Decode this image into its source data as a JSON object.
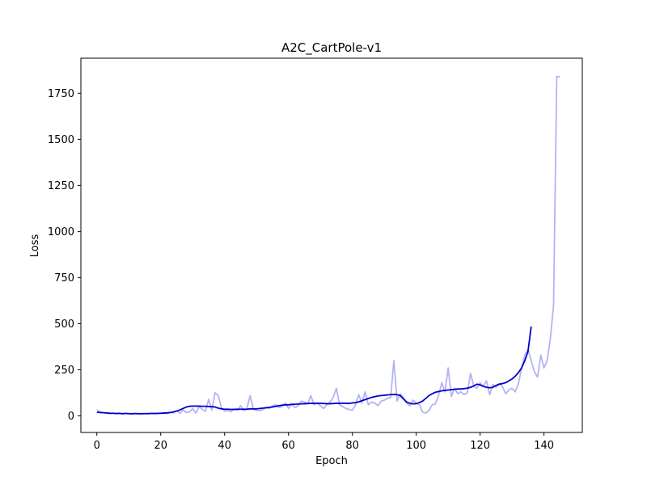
{
  "chart_data": {
    "type": "line",
    "title": "A2C_CartPole-v1",
    "xlabel": "Epoch",
    "ylabel": "Loss",
    "xlim": [
      -5,
      152
    ],
    "ylim": [
      -90,
      1940
    ],
    "xticks": [
      0,
      20,
      40,
      60,
      80,
      100,
      120,
      140
    ],
    "yticks": [
      0,
      250,
      500,
      750,
      1000,
      1250,
      1500,
      1750
    ],
    "grid": false,
    "legend": "none",
    "series": [
      {
        "role": "raw",
        "color": "#b3b3f5",
        "x": [
          0,
          1,
          2,
          3,
          4,
          5,
          6,
          7,
          8,
          9,
          10,
          11,
          12,
          13,
          14,
          15,
          16,
          17,
          18,
          19,
          20,
          21,
          22,
          23,
          24,
          25,
          26,
          27,
          28,
          29,
          30,
          31,
          32,
          33,
          34,
          35,
          36,
          37,
          38,
          39,
          40,
          41,
          42,
          43,
          44,
          45,
          46,
          47,
          48,
          49,
          50,
          51,
          52,
          53,
          54,
          55,
          56,
          57,
          58,
          59,
          60,
          61,
          62,
          63,
          64,
          65,
          66,
          67,
          68,
          69,
          70,
          71,
          72,
          73,
          74,
          75,
          76,
          77,
          78,
          79,
          80,
          81,
          82,
          83,
          84,
          85,
          86,
          87,
          88,
          89,
          90,
          91,
          92,
          93,
          94,
          95,
          96,
          97,
          98,
          99,
          100,
          101,
          102,
          103,
          104,
          105,
          106,
          107,
          108,
          109,
          110,
          111,
          112,
          113,
          114,
          115,
          116,
          117,
          118,
          119,
          120,
          121,
          122,
          123,
          124,
          125,
          126,
          127,
          128,
          129,
          130,
          131,
          132,
          133,
          134,
          135,
          136,
          137,
          138,
          139,
          140,
          141,
          142,
          143,
          144,
          145
        ],
        "values": [
          33,
          22,
          18,
          15,
          12,
          14,
          11,
          16,
          10,
          14,
          12,
          9,
          15,
          11,
          10,
          13,
          12,
          14,
          11,
          15,
          13,
          18,
          12,
          20,
          16,
          28,
          14,
          32,
          18,
          22,
          40,
          15,
          50,
          35,
          25,
          90,
          30,
          125,
          110,
          45,
          25,
          30,
          22,
          38,
          30,
          55,
          28,
          40,
          110,
          35,
          30,
          28,
          35,
          45,
          40,
          55,
          60,
          45,
          50,
          70,
          40,
          65,
          45,
          55,
          80,
          75,
          65,
          110,
          60,
          70,
          55,
          40,
          60,
          75,
          100,
          150,
          60,
          50,
          40,
          35,
          30,
          60,
          115,
          70,
          130,
          60,
          75,
          70,
          55,
          80,
          85,
          95,
          100,
          300,
          80,
          120,
          100,
          70,
          55,
          85,
          70,
          60,
          20,
          15,
          30,
          60,
          65,
          110,
          180,
          130,
          260,
          105,
          150,
          120,
          130,
          115,
          125,
          230,
          165,
          150,
          180,
          160,
          190,
          115,
          170,
          155,
          175,
          160,
          120,
          140,
          150,
          130,
          175,
          260,
          330,
          360,
          300,
          240,
          210,
          330,
          260,
          300,
          420,
          600,
          1840,
          1840
        ]
      },
      {
        "role": "smoothed",
        "color": "#0000cc",
        "x": [
          0,
          1,
          2,
          3,
          4,
          5,
          6,
          7,
          8,
          9,
          10,
          11,
          12,
          13,
          14,
          15,
          16,
          17,
          18,
          19,
          20,
          21,
          22,
          23,
          24,
          25,
          26,
          27,
          28,
          29,
          30,
          31,
          32,
          33,
          34,
          35,
          36,
          37,
          38,
          39,
          40,
          41,
          42,
          43,
          44,
          45,
          46,
          47,
          48,
          49,
          50,
          51,
          52,
          53,
          54,
          55,
          56,
          57,
          58,
          59,
          60,
          61,
          62,
          63,
          64,
          65,
          66,
          67,
          68,
          69,
          70,
          71,
          72,
          73,
          74,
          75,
          76,
          77,
          78,
          79,
          80,
          81,
          82,
          83,
          84,
          85,
          86,
          87,
          88,
          89,
          90,
          91,
          92,
          93,
          94,
          95,
          96,
          97,
          98,
          99,
          100,
          101,
          102,
          103,
          104,
          105,
          106,
          107,
          108,
          109,
          110,
          111,
          112,
          113,
          114,
          115,
          116,
          117,
          118,
          119,
          120,
          121,
          122,
          123,
          124,
          125,
          126,
          127,
          128,
          129,
          130,
          131,
          132,
          133,
          134,
          135,
          136
        ],
        "values": [
          20,
          18,
          17,
          16,
          14,
          14,
          13,
          13,
          12,
          13,
          12,
          12,
          12,
          12,
          12,
          12,
          12,
          13,
          13,
          13,
          14,
          15,
          16,
          18,
          22,
          26,
          32,
          40,
          48,
          52,
          53,
          53,
          53,
          52,
          52,
          51,
          50,
          48,
          42,
          38,
          36,
          36,
          35,
          35,
          36,
          36,
          36,
          36,
          38,
          38,
          38,
          40,
          42,
          44,
          46,
          48,
          52,
          55,
          58,
          60,
          60,
          62,
          63,
          64,
          65,
          66,
          67,
          68,
          68,
          68,
          68,
          67,
          66,
          66,
          67,
          68,
          68,
          69,
          68,
          68,
          70,
          72,
          76,
          82,
          88,
          94,
          100,
          104,
          108,
          110,
          112,
          114,
          115,
          116,
          115,
          110,
          92,
          75,
          68,
          65,
          66,
          72,
          80,
          95,
          110,
          120,
          128,
          132,
          136,
          138,
          140,
          142,
          144,
          146,
          146,
          148,
          150,
          155,
          162,
          172,
          168,
          160,
          155,
          152,
          155,
          165,
          172,
          175,
          180,
          190,
          200,
          215,
          235,
          260,
          300,
          350,
          485
        ]
      }
    ]
  }
}
